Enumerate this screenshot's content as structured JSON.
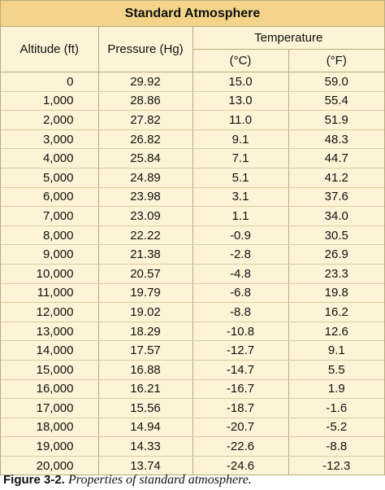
{
  "table": {
    "title": "Standard Atmosphere",
    "headers": {
      "altitude": "Altitude (ft)",
      "pressure": "Pressure (Hg)",
      "temperature": "Temperature",
      "celsius": "(°C)",
      "fahrenheit": "(°F)"
    },
    "rows": [
      [
        "0",
        "29.92",
        "15.0",
        "59.0"
      ],
      [
        "1,000",
        "28.86",
        "13.0",
        "55.4"
      ],
      [
        "2,000",
        "27.82",
        "11.0",
        "51.9"
      ],
      [
        "3,000",
        "26.82",
        "9.1",
        "48.3"
      ],
      [
        "4,000",
        "25.84",
        "7.1",
        "44.7"
      ],
      [
        "5,000",
        "24.89",
        "5.1",
        "41.2"
      ],
      [
        "6,000",
        "23.98",
        "3.1",
        "37.6"
      ],
      [
        "7,000",
        "23.09",
        "1.1",
        "34.0"
      ],
      [
        "8,000",
        "22.22",
        "-0.9",
        "30.5"
      ],
      [
        "9,000",
        "21.38",
        "-2.8",
        "26.9"
      ],
      [
        "10,000",
        "20.57",
        "-4.8",
        "23.3"
      ],
      [
        "11,000",
        "19.79",
        "-6.8",
        "19.8"
      ],
      [
        "12,000",
        "19.02",
        "-8.8",
        "16.2"
      ],
      [
        "13,000",
        "18.29",
        "-10.8",
        "12.6"
      ],
      [
        "14,000",
        "17.57",
        "-12.7",
        "9.1"
      ],
      [
        "15,000",
        "16.88",
        "-14.7",
        "5.5"
      ],
      [
        "16,000",
        "16.21",
        "-16.7",
        "1.9"
      ],
      [
        "17,000",
        "15.56",
        "-18.7",
        "-1.6"
      ],
      [
        "18,000",
        "14.94",
        "-20.7",
        "-5.2"
      ],
      [
        "19,000",
        "14.33",
        "-22.6",
        "-8.8"
      ],
      [
        "20,000",
        "13.74",
        "-24.6",
        "-12.3"
      ]
    ]
  },
  "caption": {
    "figure": "Figure 3-2.",
    "text": "Properties of standard atmosphere."
  },
  "colors": {
    "title_bg": "#f3d489",
    "body_bg": "#fdf3d6",
    "border": "#b9aa7a"
  }
}
